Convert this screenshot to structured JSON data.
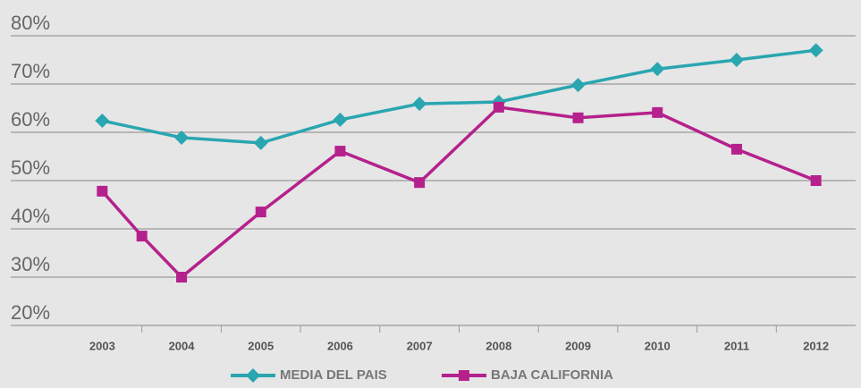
{
  "chart_data": {
    "type": "line",
    "xlim": [
      2002.5,
      2012.5
    ],
    "xticks": [
      2003,
      2004,
      2005,
      2006,
      2007,
      2008,
      2009,
      2010,
      2011,
      2012
    ],
    "ylim": [
      20,
      80
    ],
    "yticks": [
      {
        "value": 20,
        "label": "20%"
      },
      {
        "value": 30,
        "label": "30%"
      },
      {
        "value": 40,
        "label": "40%"
      },
      {
        "value": 50,
        "label": "50%"
      },
      {
        "value": 60,
        "label": "60%"
      },
      {
        "value": 70,
        "label": "70%"
      },
      {
        "value": 80,
        "label": "80%"
      }
    ],
    "grid": true,
    "legend": "bottom",
    "series": [
      {
        "name": "MEDIA DEL PAIS",
        "color": "#2aa6b0",
        "marker": "diamond",
        "x": [
          2003,
          2004,
          2005,
          2006,
          2007,
          2008,
          2009,
          2010,
          2011,
          2012
        ],
        "values": [
          62.4,
          58.9,
          57.8,
          62.6,
          65.9,
          66.3,
          69.8,
          73.1,
          75,
          77
        ]
      },
      {
        "name": "BAJA CALIFORNIA",
        "color": "#b5218c",
        "marker": "square",
        "x": [
          2003,
          2003.5,
          2004,
          2005,
          2006,
          2007,
          2008,
          2009,
          2010,
          2011,
          2012
        ],
        "values": [
          47.8,
          38.5,
          30,
          43.5,
          56.1,
          49.6,
          65.2,
          63,
          64.1,
          56.5,
          50
        ]
      }
    ]
  }
}
